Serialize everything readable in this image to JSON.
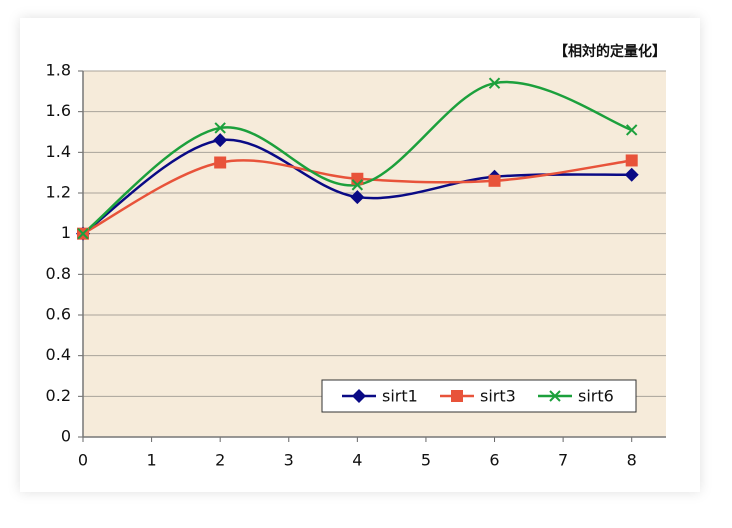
{
  "chart_data": {
    "type": "line",
    "annotation": "【相対的定量化】",
    "x": [
      0,
      2,
      4,
      6,
      8
    ],
    "series": [
      {
        "name": "sirt1",
        "color": "#0a0a85",
        "marker": "diamond",
        "values": [
          1,
          1.46,
          1.18,
          1.28,
          1.29
        ]
      },
      {
        "name": "sirt3",
        "color": "#e8533a",
        "marker": "square",
        "values": [
          1,
          1.35,
          1.27,
          1.26,
          1.36
        ]
      },
      {
        "name": "sirt6",
        "color": "#1ca03c",
        "marker": "x",
        "values": [
          1,
          1.52,
          1.24,
          1.74,
          1.51
        ]
      }
    ],
    "xlim": [
      0,
      8.5
    ],
    "xticks": [
      0,
      1,
      2,
      3,
      4,
      5,
      6,
      7,
      8
    ],
    "ylim": [
      0,
      1.8
    ],
    "yticks": [
      0,
      0.2,
      0.4,
      0.6,
      0.8,
      1,
      1.2,
      1.4,
      1.6,
      1.8
    ],
    "grid": true,
    "smooth": true,
    "legend": "bottom-right"
  }
}
